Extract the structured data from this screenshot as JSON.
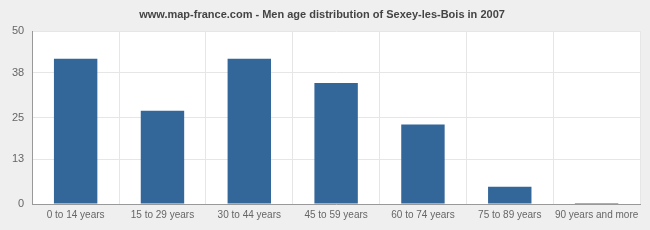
{
  "chart_data": {
    "type": "bar",
    "title": "www.map-france.com - Men age distribution of Sexey-les-Bois in 2007",
    "categories": [
      "0 to 14 years",
      "15 to 29 years",
      "30 to 44 years",
      "45 to 59 years",
      "60 to 74 years",
      "75 to 89 years",
      "90 years and more"
    ],
    "values": [
      42,
      27,
      42,
      35,
      23,
      5,
      0
    ],
    "color": "#336699",
    "ylim": [
      0,
      50
    ],
    "yticks": [
      0,
      13,
      25,
      38,
      50
    ],
    "grid": true
  }
}
